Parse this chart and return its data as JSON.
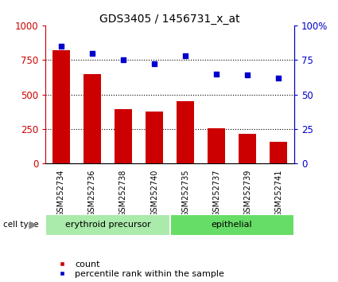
{
  "title": "GDS3405 / 1456731_x_at",
  "samples": [
    "GSM252734",
    "GSM252736",
    "GSM252738",
    "GSM252740",
    "GSM252735",
    "GSM252737",
    "GSM252739",
    "GSM252741"
  ],
  "counts": [
    820,
    650,
    395,
    375,
    450,
    255,
    215,
    155
  ],
  "percentiles": [
    85,
    80,
    75,
    72,
    78,
    65,
    64,
    62
  ],
  "group_labels": [
    "erythroid precursor",
    "epithelial"
  ],
  "bar_color": "#cc0000",
  "dot_color": "#0000cc",
  "bar_width": 0.55,
  "ylim_left": [
    0,
    1000
  ],
  "ylim_right": [
    0,
    100
  ],
  "yticks_left": [
    0,
    250,
    500,
    750,
    1000
  ],
  "yticks_right": [
    0,
    25,
    50,
    75,
    100
  ],
  "ytick_labels_left": [
    "0",
    "250",
    "500",
    "750",
    "1000"
  ],
  "ytick_labels_right": [
    "0",
    "25",
    "50",
    "75",
    "100%"
  ],
  "right_top_label": "100%",
  "grid_values": [
    250,
    500,
    750
  ],
  "bg_color": "#ffffff",
  "tick_label_area_color": "#cccccc",
  "group_color_1": "#aaeaaa",
  "group_color_2": "#66dd66",
  "cell_type_label": "cell type",
  "legend_count_label": "count",
  "legend_pct_label": "percentile rank within the sample",
  "title_fontsize": 10,
  "axis_fontsize": 8.5,
  "sample_fontsize": 7,
  "group_fontsize": 8,
  "legend_fontsize": 8
}
